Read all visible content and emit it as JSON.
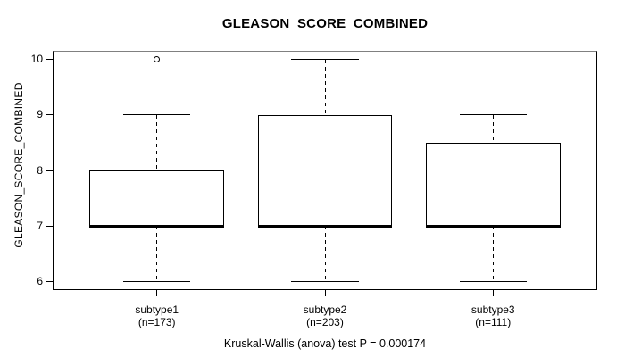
{
  "page": {
    "background": "#ffffff",
    "line_color": "#000000",
    "box_fill": "#ffffff"
  },
  "chart_data": {
    "type": "boxplot",
    "title": "GLEASON_SCORE_COMBINED",
    "ylabel": "GLEASON_SCORE_COMBINED",
    "xlabel": "",
    "footer": "Kruskal-Wallis (anova) test P = 0.000174",
    "grid": false,
    "legend": "none",
    "ylim": [
      5.84,
      10.16
    ],
    "yticks": [
      "6",
      "7",
      "8",
      "9",
      "10"
    ],
    "groups": [
      {
        "label": "subtype1",
        "sublabel": "(n=173)",
        "n": 173,
        "whisker_low": 6,
        "q1": 7,
        "median": 7,
        "q3": 8,
        "whisker_high": 9,
        "outliers": [
          10
        ]
      },
      {
        "label": "subtype2",
        "sublabel": "(n=203)",
        "n": 203,
        "whisker_low": 6,
        "q1": 7,
        "median": 7,
        "q3": 9,
        "whisker_high": 10,
        "outliers": []
      },
      {
        "label": "subtype3",
        "sublabel": "(n=111)",
        "n": 111,
        "whisker_low": 6,
        "q1": 7,
        "median": 7,
        "q3": 8.5,
        "whisker_high": 9,
        "outliers": []
      }
    ]
  }
}
